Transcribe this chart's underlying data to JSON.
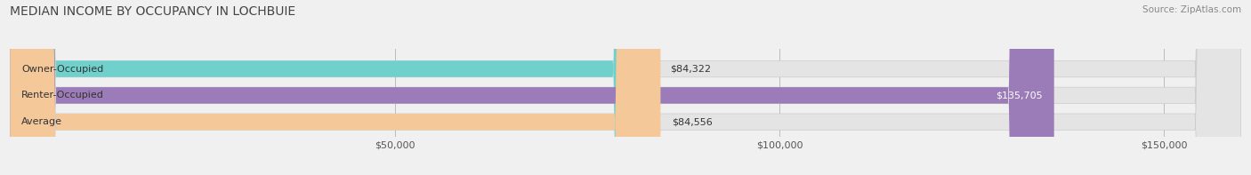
{
  "title": "MEDIAN INCOME BY OCCUPANCY IN LOCHBUIE",
  "source": "Source: ZipAtlas.com",
  "categories": [
    "Owner-Occupied",
    "Renter-Occupied",
    "Average"
  ],
  "values": [
    84322,
    135705,
    84556
  ],
  "bar_colors": [
    "#6fd0cc",
    "#9b7bb8",
    "#f5c899"
  ],
  "value_labels": [
    "$84,322",
    "$135,705",
    "$84,556"
  ],
  "xlim": [
    0,
    160000
  ],
  "xticks": [
    50000,
    100000,
    150000
  ],
  "xtick_labels": [
    "$50,000",
    "$100,000",
    "$150,000"
  ],
  "background_color": "#f0f0f0",
  "bar_bg_color": "#e4e4e4",
  "title_fontsize": 10,
  "source_fontsize": 7.5,
  "label_fontsize": 8,
  "value_fontsize": 8,
  "tick_fontsize": 8
}
